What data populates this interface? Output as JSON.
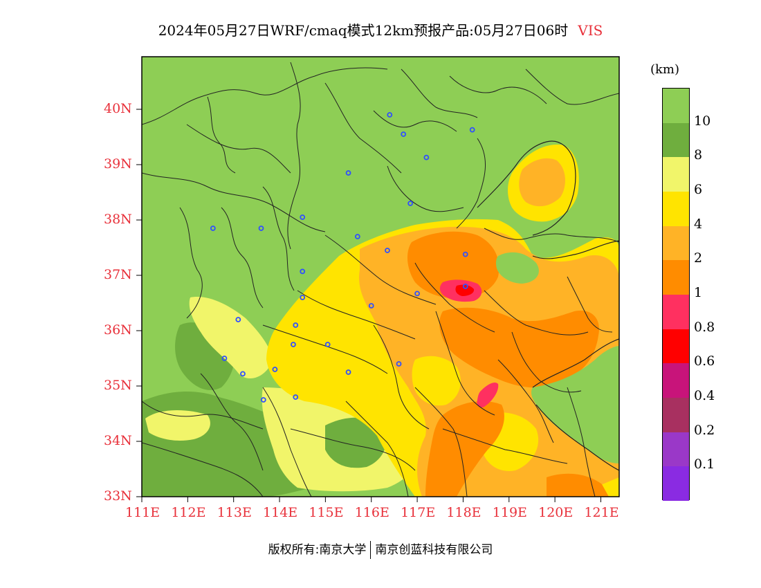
{
  "title": {
    "text": "2024年05月27日WRF/cmaq模式12km预报产品:05月27日06时",
    "variable": "VIS"
  },
  "legend": {
    "unit": "(km)",
    "items": [
      {
        "label": "10",
        "color": "#8ece55"
      },
      {
        "label": "8",
        "color": "#6fae3e"
      },
      {
        "label": "6",
        "color": "#f1f56a"
      },
      {
        "label": "4",
        "color": "#ffe400"
      },
      {
        "label": "2",
        "color": "#ffb326"
      },
      {
        "label": "1",
        "color": "#ff8c00"
      },
      {
        "label": "0.8",
        "color": "#ff3060"
      },
      {
        "label": "0.6",
        "color": "#ff0000"
      },
      {
        "label": "0.4",
        "color": "#c8147a"
      },
      {
        "label": "0.2",
        "color": "#a83060"
      },
      {
        "label": "0.1",
        "color": "#9a38c8"
      },
      {
        "label": "",
        "color": "#8a2be2"
      }
    ]
  },
  "axes": {
    "lat_labels": [
      "40N",
      "39N",
      "38N",
      "37N",
      "36N",
      "35N",
      "34N",
      "33N"
    ],
    "lon_labels": [
      "111E",
      "112E",
      "113E",
      "114E",
      "115E",
      "116E",
      "117E",
      "118E",
      "119E",
      "120E",
      "121E"
    ]
  },
  "footer": {
    "left": "版权所有:南京大学",
    "right": "南京创蓝科技有限公司"
  },
  "chart_data": {
    "type": "heatmap",
    "title": "2024年05月27日WRF/cmaq模式12km预报产品:05月27日06时 VIS",
    "variable": "VIS",
    "unit": "km",
    "xlim": [
      111,
      121.4
    ],
    "ylim": [
      33,
      40.95
    ],
    "x_ticks": [
      111,
      112,
      113,
      114,
      115,
      116,
      117,
      118,
      119,
      120,
      121
    ],
    "y_ticks": [
      33,
      34,
      35,
      36,
      37,
      38,
      39,
      40
    ],
    "levels": [
      0.1,
      0.2,
      0.4,
      0.6,
      0.8,
      1,
      2,
      4,
      6,
      8,
      10
    ],
    "city_markers": [
      [
        116.4,
        39.9
      ],
      [
        116.7,
        39.55
      ],
      [
        117.2,
        39.13
      ],
      [
        118.2,
        39.63
      ],
      [
        115.5,
        38.85
      ],
      [
        116.85,
        38.3
      ],
      [
        112.55,
        37.85
      ],
      [
        113.6,
        37.85
      ],
      [
        114.5,
        38.05
      ],
      [
        115.7,
        37.7
      ],
      [
        116.35,
        37.45
      ],
      [
        118.05,
        37.38
      ],
      [
        114.5,
        37.07
      ],
      [
        114.5,
        36.6
      ],
      [
        116.0,
        36.45
      ],
      [
        117.0,
        36.67
      ],
      [
        118.05,
        36.8
      ],
      [
        113.1,
        36.2
      ],
      [
        114.35,
        36.1
      ],
      [
        114.3,
        35.75
      ],
      [
        115.05,
        35.75
      ],
      [
        112.8,
        35.5
      ],
      [
        113.2,
        35.22
      ],
      [
        113.9,
        35.3
      ],
      [
        115.5,
        35.25
      ],
      [
        116.6,
        35.4
      ],
      [
        114.35,
        34.8
      ],
      [
        113.65,
        34.75
      ]
    ]
  }
}
